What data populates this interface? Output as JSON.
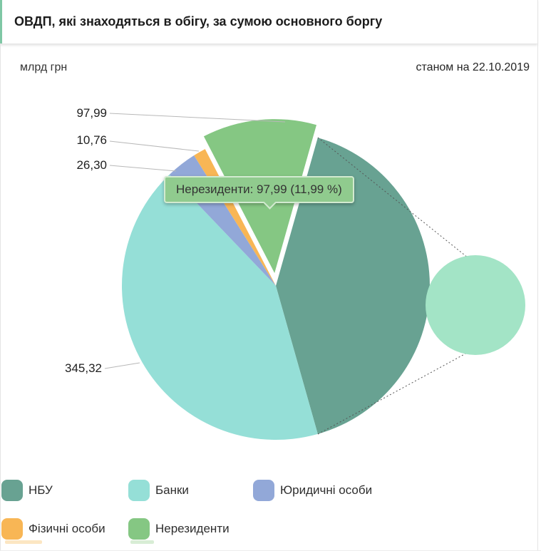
{
  "header": {
    "title": "ОВДП, які знаходяться в обігу, за сумою основного боргу",
    "accent_color": "#7fc7a5"
  },
  "subheader": {
    "unit": "млрд грн",
    "as_of": "станом на 22.10.2019"
  },
  "chart_data": {
    "type": "pie",
    "title": "ОВДП, які знаходяться в обігу, за сумою основного боргу",
    "unit_label": "млрд грн",
    "as_of_label": "станом на 22.10.2019",
    "start_angle_deg": -74.2,
    "clockwise": true,
    "legend_position": "bottom-left",
    "slices": [
      {
        "name": "НБУ",
        "value": null,
        "value_label": "",
        "pct": 41.22,
        "color": "#68a292",
        "exploded": false
      },
      {
        "name": "Банки",
        "value": 345.32,
        "value_label": "345,32",
        "pct": 42.25,
        "color": "#95dfd7",
        "exploded": false
      },
      {
        "name": "Юридичні особи",
        "value": 26.3,
        "value_label": "26,30",
        "pct": 3.22,
        "color": "#92a8d8",
        "exploded": false
      },
      {
        "name": "Фізичні особи",
        "value": 10.76,
        "value_label": "10,76",
        "pct": 1.32,
        "color": "#f8b655",
        "exploded": false
      },
      {
        "name": "Нерезиденти",
        "value": 97.99,
        "value_label": "97,99",
        "pct": 11.99,
        "color": "#85c783",
        "exploded": true
      }
    ],
    "tooltip": {
      "text": "Нерезиденти: 97,99 (11,99 %)",
      "bg_color": "#90cb8e",
      "border_color": "#d2ead0"
    },
    "detail_circle": {
      "color": "#a3e4c6"
    }
  }
}
